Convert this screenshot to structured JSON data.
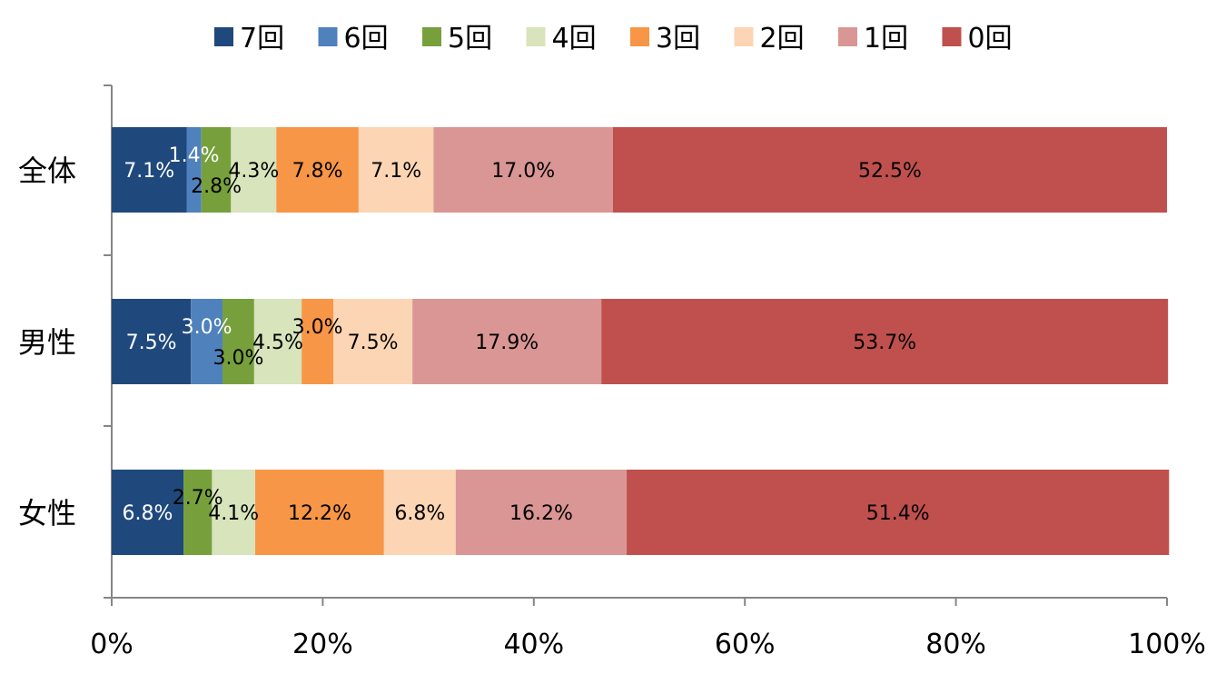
{
  "chart_data": {
    "type": "bar",
    "orientation": "horizontal",
    "stacked": "percent",
    "categories": [
      "全体",
      "男性",
      "女性"
    ],
    "series": [
      {
        "name": "7回",
        "color": "#1F497D",
        "label_color": "#ffffff",
        "values": [
          7.1,
          7.5,
          6.8
        ],
        "labels": [
          "7.1%",
          "7.5%",
          "6.8%"
        ]
      },
      {
        "name": "6回",
        "color": "#4F81BD",
        "label_color": "#ffffff",
        "values": [
          1.4,
          3.0,
          0
        ],
        "labels": [
          "1.4%",
          "3.0%",
          ""
        ]
      },
      {
        "name": "5回",
        "color": "#77A03C",
        "label_color": "#000000",
        "values": [
          2.8,
          3.0,
          2.7
        ],
        "labels": [
          "2.8%",
          "3.0%",
          "2.7%"
        ]
      },
      {
        "name": "4回",
        "color": "#D7E4BC",
        "label_color": "#000000",
        "values": [
          4.3,
          4.5,
          4.1
        ],
        "labels": [
          "4.3%",
          "4.5%",
          "4.1%"
        ]
      },
      {
        "name": "3回",
        "color": "#F79646",
        "label_color": "#000000",
        "values": [
          7.8,
          3.0,
          12.2
        ],
        "labels": [
          "7.8%",
          "3.0%",
          "12.2%"
        ]
      },
      {
        "name": "2回",
        "color": "#FCD5B4",
        "label_color": "#000000",
        "values": [
          7.1,
          7.5,
          6.8
        ],
        "labels": [
          "7.1%",
          "7.5%",
          "6.8%"
        ]
      },
      {
        "name": "1回",
        "color": "#D99694",
        "label_color": "#000000",
        "values": [
          17.0,
          17.9,
          16.2
        ],
        "labels": [
          "17.0%",
          "17.9%",
          "16.2%"
        ]
      },
      {
        "name": "0回",
        "color": "#C0504D",
        "label_color": "#000000",
        "values": [
          52.5,
          53.7,
          51.4
        ],
        "labels": [
          "52.5%",
          "53.7%",
          "51.4%"
        ]
      }
    ],
    "x_ticks": [
      "0%",
      "20%",
      "40%",
      "60%",
      "80%",
      "100%"
    ],
    "xlim": [
      0,
      100
    ],
    "legend_position": "top",
    "grid": false
  }
}
